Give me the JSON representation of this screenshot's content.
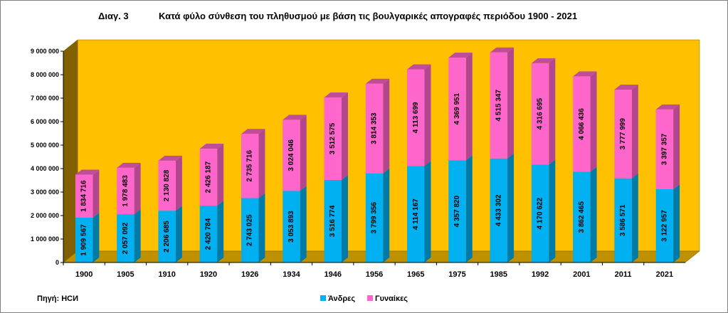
{
  "chart_data": {
    "type": "bar",
    "stacked": true,
    "three_d": true,
    "title_prefix": "Διαγ. 3",
    "title": "Κατά φύλο σύνθεση του πληθυσμού με βάση τις βουλγαρικές απογραφές περιόδου  1900 - 2021",
    "source": "Πηγή: НСИ",
    "categories": [
      "1900",
      "1905",
      "1910",
      "1920",
      "1926",
      "1934",
      "1946",
      "1956",
      "1965",
      "1975",
      "1985",
      "1992",
      "2001",
      "2011",
      "2021"
    ],
    "series": [
      {
        "name": "Άνδρες",
        "color": "#00B0F0",
        "values": [
          1909567,
          2057092,
          2206685,
          2420784,
          2743025,
          3053893,
          3516774,
          3799356,
          4114167,
          4357820,
          4433302,
          4170622,
          3862465,
          3586571,
          3122957
        ]
      },
      {
        "name": "Γυναίκες",
        "color": "#FF66CC",
        "values": [
          1834716,
          1978483,
          2130828,
          2426187,
          2735716,
          3024046,
          3512575,
          3814353,
          4113699,
          4369951,
          4515347,
          4316695,
          4066436,
          3777999,
          3397357
        ]
      }
    ],
    "ylim": [
      0,
      9000000
    ],
    "y_ticks": [
      "0",
      "1 000 000",
      "2 000 000",
      "3 000 000",
      "4 000 000",
      "5 000 000",
      "6 000 000",
      "7 000 000",
      "8 000 000",
      "9 000 000"
    ],
    "legend_position": "bottom",
    "wall_color": "#FFC000",
    "floor_color": "#FFC000"
  }
}
